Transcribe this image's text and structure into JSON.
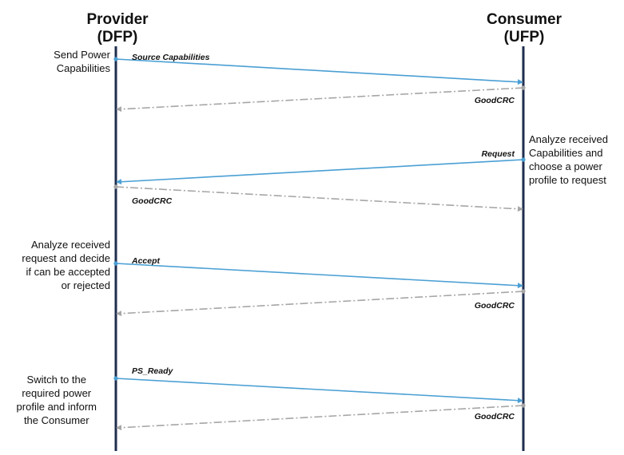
{
  "participants": {
    "provider": {
      "name": "Provider",
      "role": "(DFP)"
    },
    "consumer": {
      "name": "Consumer",
      "role": "(UFP)"
    }
  },
  "notes": {
    "send_power": [
      "Send Power",
      "Capabilities"
    ],
    "analyze_capabilities": [
      "Analyze received",
      "Capabilities and",
      "choose a power",
      "profile to request"
    ],
    "analyze_request": [
      "Analyze received",
      "request and decide",
      "if can be accepted",
      "or rejected"
    ],
    "switch": [
      "Switch to the",
      "required power",
      "profile and inform",
      "the Consumer"
    ]
  },
  "messages": [
    {
      "label": "Source Capabilities",
      "from": "provider",
      "to": "consumer",
      "style": "solid"
    },
    {
      "label": "GoodCRC",
      "from": "consumer",
      "to": "provider",
      "style": "dashdot"
    },
    {
      "label": "Request",
      "from": "consumer",
      "to": "provider",
      "style": "solid"
    },
    {
      "label": "GoodCRC",
      "from": "provider",
      "to": "consumer",
      "style": "dashdot"
    },
    {
      "label": "Accept",
      "from": "provider",
      "to": "consumer",
      "style": "solid"
    },
    {
      "label": "GoodCRC",
      "from": "consumer",
      "to": "provider",
      "style": "dashdot"
    },
    {
      "label": "PS_Ready",
      "from": "provider",
      "to": "consumer",
      "style": "solid"
    },
    {
      "label": "GoodCRC",
      "from": "consumer",
      "to": "provider",
      "style": "dashdot"
    }
  ],
  "colors": {
    "lifeline": "#1f2d4e",
    "message": "#4a9fd4",
    "ack": "#a6a6a6"
  }
}
